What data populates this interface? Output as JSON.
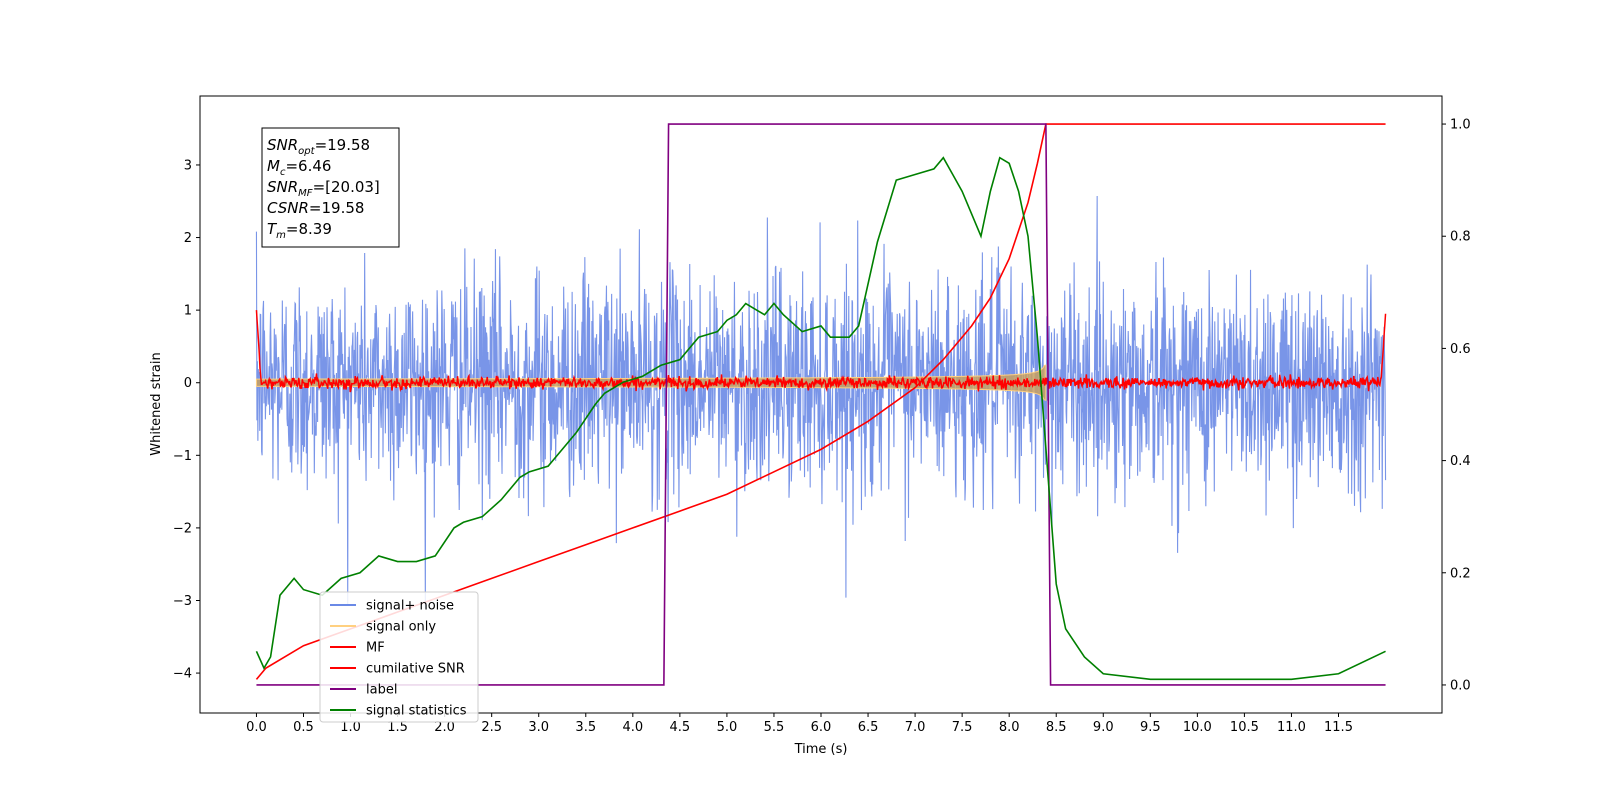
{
  "chart_data": {
    "type": "line",
    "xlabel": "Time (s)",
    "ylabel": "Whitened strain",
    "xlim": [
      -0.6,
      12.6
    ],
    "ylim_left": [
      -4.55,
      3.95
    ],
    "ylim_right": [
      -0.05,
      1.05
    ],
    "x_ticks": [
      "0.0",
      "0.5",
      "1.0",
      "1.5",
      "2.0",
      "2.5",
      "3.0",
      "3.5",
      "4.0",
      "4.5",
      "5.0",
      "5.5",
      "6.0",
      "6.5",
      "7.0",
      "7.5",
      "8.0",
      "8.5",
      "9.0",
      "9.5",
      "10.0",
      "10.5",
      "11.0",
      "11.5"
    ],
    "y_ticks_left": [
      "3",
      "2",
      "1",
      "0",
      "−1",
      "−2",
      "−3",
      "−4"
    ],
    "y_ticks_right": [
      "0.0",
      "0.2",
      "0.4",
      "0.6",
      "0.8",
      "1.0"
    ],
    "info_box": [
      {
        "base": "SNR",
        "sub": "opt",
        "rest": "=19.58"
      },
      {
        "base": "M",
        "sub": "c",
        "rest": "=6.46"
      },
      {
        "base": "SNR",
        "sub": "MF",
        "rest": "=[20.03]"
      },
      {
        "base": "CSNR",
        "sub": "",
        "rest": "=19.58"
      },
      {
        "base": "T",
        "sub": "m",
        "rest": "=8.39"
      }
    ],
    "series": [
      {
        "name": "signal+ noise",
        "color": "#6a89e6",
        "axis": "left",
        "kind": "noise",
        "noise_std": 0.75,
        "x_range": [
          0,
          12
        ],
        "merger_time": 8.39
      },
      {
        "name": "signal only",
        "color": "#ffd080",
        "axis": "left",
        "kind": "chirp_envelope",
        "start_amp": 0.05,
        "peak_amp": 1.0,
        "x_range": [
          0,
          8.39
        ]
      },
      {
        "name": "MF",
        "color": "#ff0000",
        "axis": "left",
        "kind": "mf",
        "baseline": 0.0,
        "noise_std": 0.04,
        "edge_values": [
          1.0,
          0.95
        ]
      },
      {
        "name": "cumilative SNR",
        "color": "#ff0000",
        "axis": "right",
        "x": [
          0.0,
          0.1,
          0.5,
          1.0,
          1.5,
          2.0,
          2.5,
          3.0,
          3.5,
          4.0,
          4.5,
          5.0,
          5.5,
          6.0,
          6.5,
          7.0,
          7.3,
          7.6,
          7.8,
          8.0,
          8.1,
          8.2,
          8.3,
          8.39,
          8.41,
          12.0
        ],
        "y": [
          0.01,
          0.03,
          0.07,
          0.1,
          0.13,
          0.16,
          0.19,
          0.22,
          0.25,
          0.28,
          0.31,
          0.34,
          0.38,
          0.42,
          0.47,
          0.53,
          0.58,
          0.64,
          0.69,
          0.76,
          0.81,
          0.86,
          0.93,
          1.0,
          1.0,
          1.0
        ]
      },
      {
        "name": "label",
        "color": "#800080",
        "axis": "right",
        "x": [
          0.0,
          4.33,
          4.38,
          8.39,
          8.44,
          12.0
        ],
        "y": [
          0.0,
          0.0,
          1.0,
          1.0,
          0.0,
          0.0
        ]
      },
      {
        "name": "signal statistics",
        "color": "#008000",
        "axis": "right",
        "x": [
          0.0,
          0.08,
          0.15,
          0.25,
          0.4,
          0.5,
          0.7,
          0.9,
          1.1,
          1.3,
          1.5,
          1.7,
          1.9,
          2.1,
          2.2,
          2.4,
          2.6,
          2.8,
          2.9,
          3.1,
          3.3,
          3.4,
          3.6,
          3.7,
          3.9,
          4.1,
          4.3,
          4.5,
          4.7,
          4.9,
          5.0,
          5.1,
          5.2,
          5.3,
          5.4,
          5.5,
          5.6,
          5.8,
          6.0,
          6.1,
          6.3,
          6.4,
          6.6,
          6.8,
          7.0,
          7.2,
          7.3,
          7.4,
          7.5,
          7.7,
          7.8,
          7.9,
          8.0,
          8.1,
          8.2,
          8.3,
          8.4,
          8.5,
          8.6,
          8.8,
          9.0,
          9.5,
          10.0,
          10.5,
          11.0,
          11.5,
          12.0
        ],
        "y": [
          0.06,
          0.03,
          0.05,
          0.16,
          0.19,
          0.17,
          0.16,
          0.19,
          0.2,
          0.23,
          0.22,
          0.22,
          0.23,
          0.28,
          0.29,
          0.3,
          0.33,
          0.37,
          0.38,
          0.39,
          0.43,
          0.45,
          0.5,
          0.52,
          0.54,
          0.55,
          0.57,
          0.58,
          0.62,
          0.63,
          0.65,
          0.66,
          0.68,
          0.67,
          0.66,
          0.68,
          0.66,
          0.63,
          0.64,
          0.62,
          0.62,
          0.64,
          0.79,
          0.9,
          0.91,
          0.92,
          0.94,
          0.91,
          0.88,
          0.8,
          0.88,
          0.94,
          0.93,
          0.88,
          0.8,
          0.62,
          0.4,
          0.18,
          0.1,
          0.05,
          0.02,
          0.01,
          0.01,
          0.01,
          0.01,
          0.02,
          0.06
        ]
      }
    ],
    "legend_location": "lower-left",
    "grid": false
  }
}
